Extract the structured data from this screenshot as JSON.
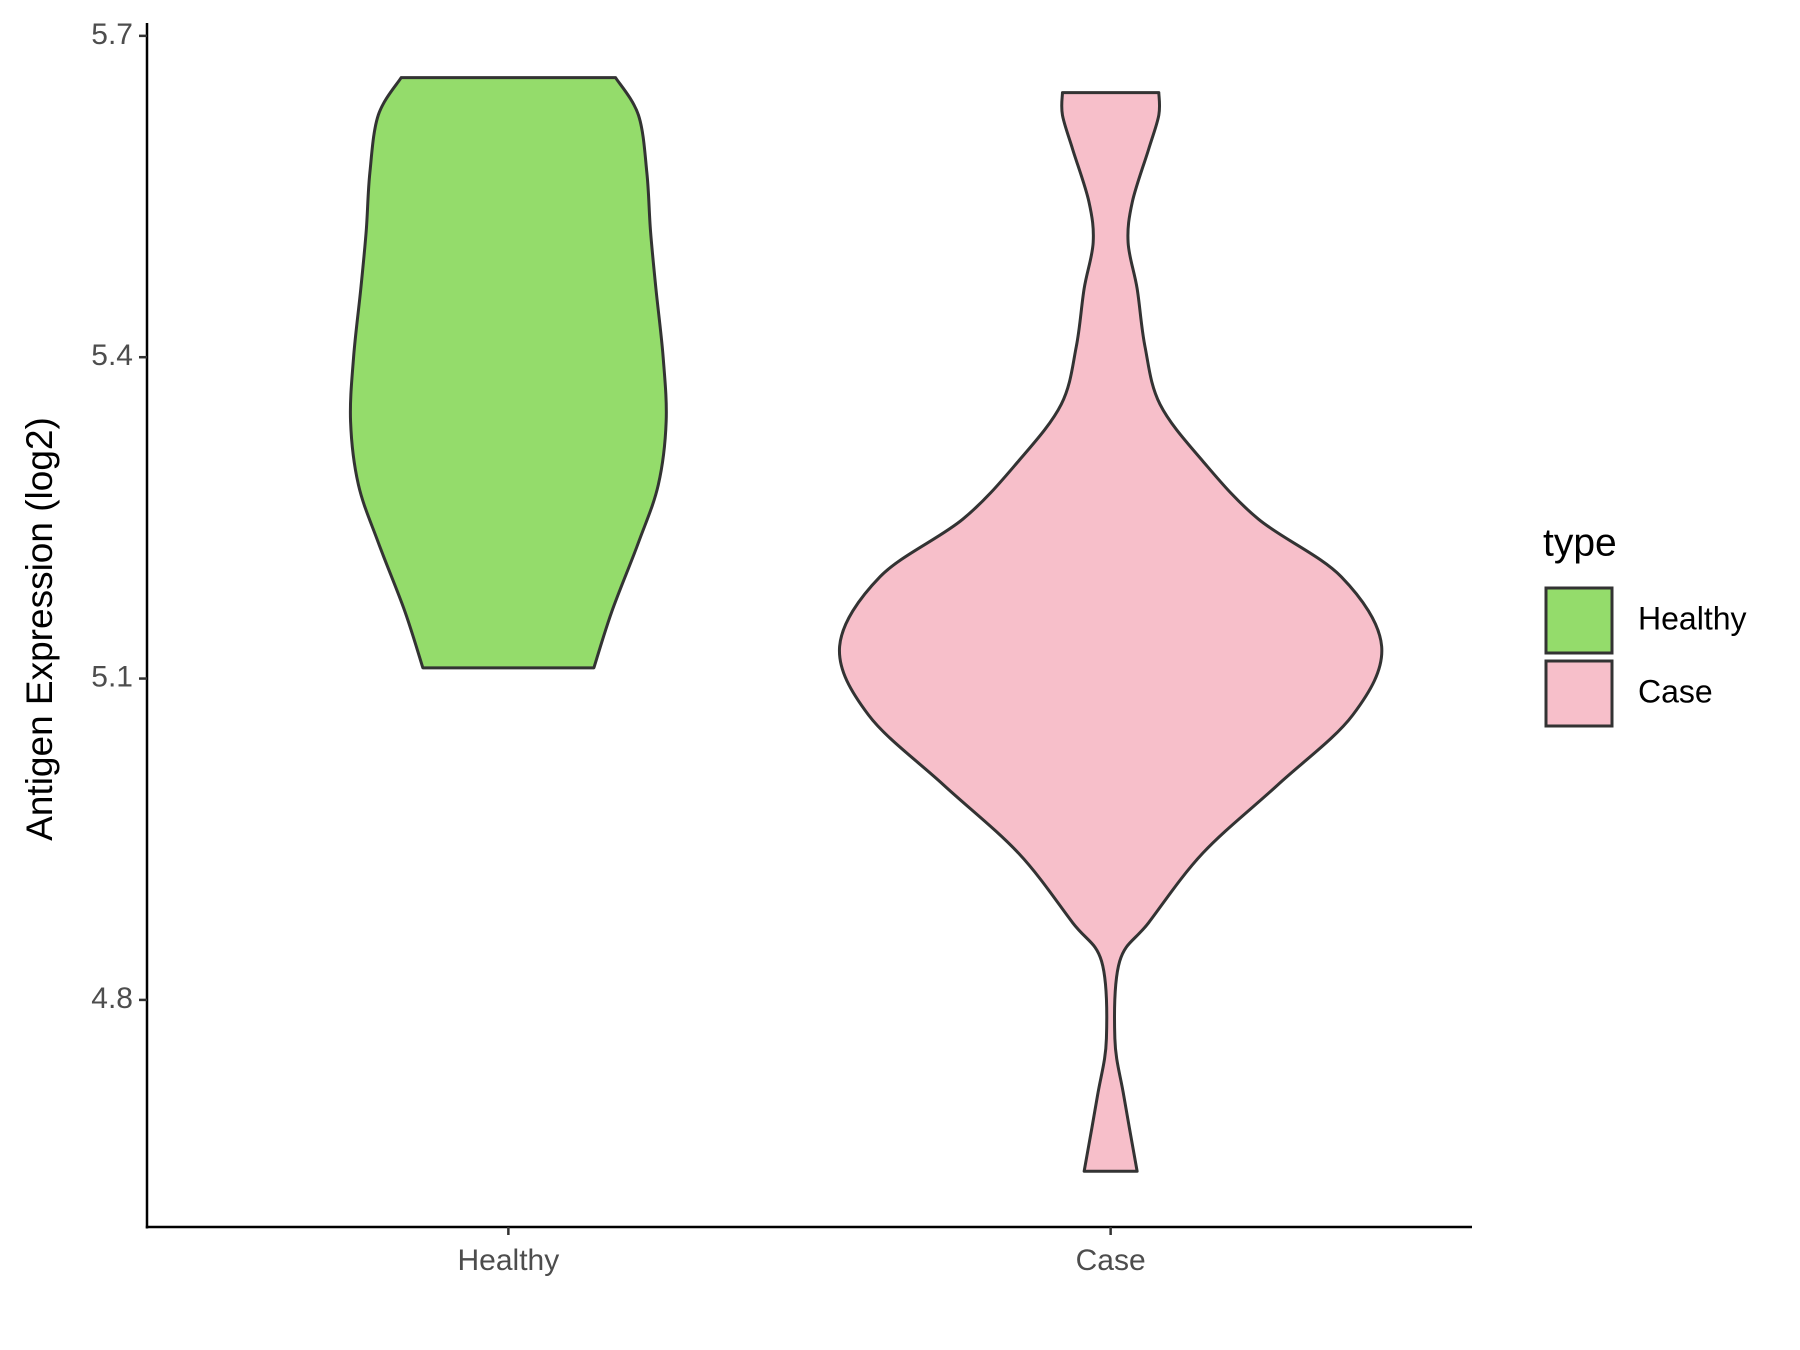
{
  "chart_data": {
    "type": "violin",
    "y_label": "Antigen Expression (log2)",
    "legend_title": "type",
    "legend_position": "right",
    "categories": [
      "Healthy",
      "Case"
    ],
    "ylim": [
      4.588,
      5.712
    ],
    "yticks": [
      4.8,
      5.1,
      5.4,
      5.7
    ],
    "series": [
      {
        "name": "Healthy",
        "color": "#94dc6b",
        "values": [
          5.661,
          5.626,
          5.572,
          5.518,
          5.464,
          5.4,
          5.34,
          5.281,
          5.227,
          5.163,
          5.11
        ],
        "widths": [
          0.178,
          0.216,
          0.23,
          0.236,
          0.245,
          0.257,
          0.262,
          0.249,
          0.216,
          0.172,
          0.142
        ]
      },
      {
        "name": "Case",
        "color": "#f7bfca",
        "values": [
          5.647,
          5.626,
          5.594,
          5.545,
          5.507,
          5.464,
          5.41,
          5.356,
          5.303,
          5.249,
          5.195,
          5.13,
          5.066,
          5.001,
          4.937,
          4.872,
          4.836,
          4.764,
          4.71,
          4.64
        ],
        "widths": [
          0.08,
          0.08,
          0.063,
          0.036,
          0.029,
          0.044,
          0.057,
          0.082,
          0.153,
          0.245,
          0.383,
          0.45,
          0.402,
          0.278,
          0.153,
          0.063,
          0.015,
          0.007,
          0.022,
          0.044
        ]
      }
    ]
  }
}
